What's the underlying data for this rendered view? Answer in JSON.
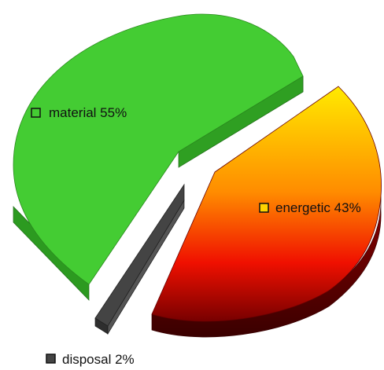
{
  "chart_data": {
    "type": "pie",
    "style": "3d-exploded",
    "legend": "inline-labels",
    "slices": [
      {
        "label": "material",
        "value": 55,
        "display": "material 55%",
        "color": "#44CC33"
      },
      {
        "label": "energetic",
        "value": 43,
        "display": "energetic 43%",
        "color": "#FF2A00"
      },
      {
        "label": "disposal",
        "value": 2,
        "display": "disposal 2%",
        "color": "#444444"
      }
    ]
  }
}
